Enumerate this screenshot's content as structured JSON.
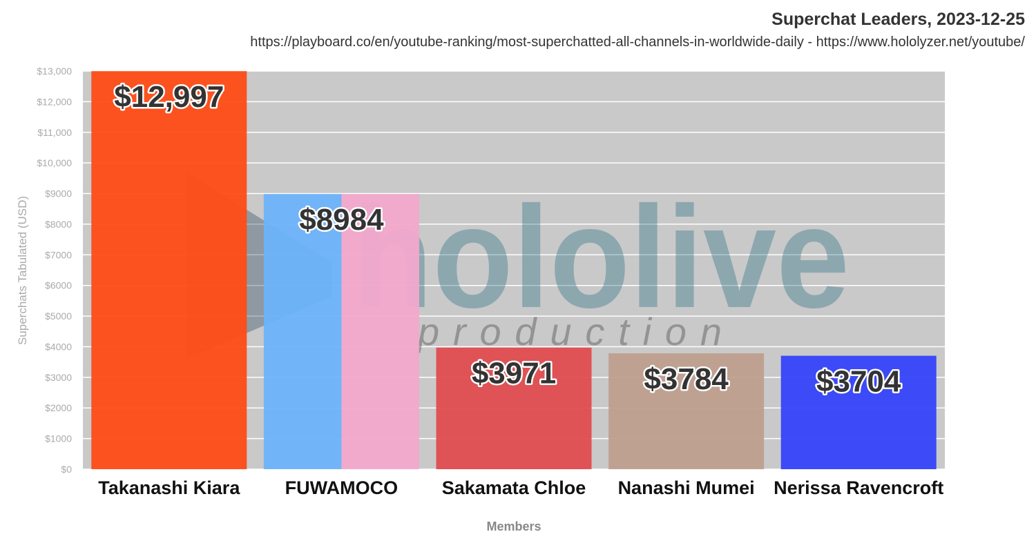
{
  "chart_data": {
    "type": "bar",
    "title": "Superchat Leaders, 2023-12-25",
    "subtitle": "https://playboard.co/en/youtube-ranking/most-superchatted-all-channels-in-worldwide-daily - https://www.hololyzer.net/youtube/",
    "xlabel": "Members",
    "ylabel": "Superchats Tabulated (USD)",
    "ylim": [
      0,
      13000
    ],
    "grid": true,
    "yticks": [
      {
        "value": 0,
        "label": "$0"
      },
      {
        "value": 1000,
        "label": "$1000"
      },
      {
        "value": 2000,
        "label": "$2000"
      },
      {
        "value": 3000,
        "label": "$3000"
      },
      {
        "value": 4000,
        "label": "$4000"
      },
      {
        "value": 5000,
        "label": "$5000"
      },
      {
        "value": 6000,
        "label": "$6000"
      },
      {
        "value": 7000,
        "label": "$7000"
      },
      {
        "value": 8000,
        "label": "$8000"
      },
      {
        "value": 9000,
        "label": "$9000"
      },
      {
        "value": 10000,
        "label": "$10,000"
      },
      {
        "value": 11000,
        "label": "$11,000"
      },
      {
        "value": 12000,
        "label": "$12,000"
      },
      {
        "value": 13000,
        "label": "$13,000"
      }
    ],
    "categories": [
      "Takanashi Kiara",
      "FUWAMOCO",
      "Sakamata Chloe",
      "Nanashi Mumei",
      "Nerissa Ravencroft"
    ],
    "values": [
      12997,
      8984,
      3971,
      3784,
      3704
    ],
    "data_labels": [
      "$12,997",
      "$8984",
      "$3971",
      "$3784",
      "$3704"
    ],
    "bar_colors": [
      [
        "#ff4c16"
      ],
      [
        "#6db3fb",
        "#f3a8cc"
      ],
      [
        "#e04c4f"
      ],
      [
        "#bf9f8f"
      ],
      [
        "#3543fb"
      ]
    ],
    "watermark": {
      "word": "hololive",
      "sub": "production"
    }
  }
}
